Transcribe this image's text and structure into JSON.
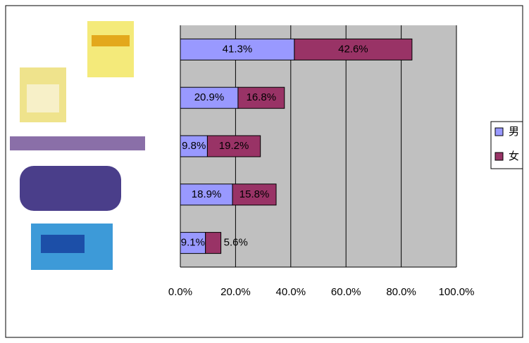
{
  "chart_data": {
    "type": "stacked-bar-horizontal",
    "categories": [
      null,
      null,
      null,
      null,
      null
    ],
    "series": [
      {
        "name": "男",
        "color": "#9999ff",
        "values": [
          41.3,
          20.9,
          9.8,
          18.9,
          9.1
        ],
        "value_labels": [
          "41.3%",
          "20.9%",
          "9.8%",
          "18.9%",
          "9.1%"
        ]
      },
      {
        "name": "女",
        "color": "#993366",
        "values": [
          42.6,
          16.8,
          19.2,
          15.8,
          5.6
        ],
        "value_labels": [
          "42.6%",
          "16.8%",
          "19.2%",
          "15.8%",
          "5.6%"
        ]
      }
    ],
    "xlim": [
      0,
      100
    ],
    "xticks": [
      {
        "value": 0,
        "label": "0.0%"
      },
      {
        "value": 20,
        "label": "20.0%"
      },
      {
        "value": 40,
        "label": "40.0%"
      },
      {
        "value": 60,
        "label": "60.0%"
      },
      {
        "value": 80,
        "label": "80.0%"
      },
      {
        "value": 100,
        "label": "100.0%"
      }
    ],
    "grid": true,
    "legend": "right"
  }
}
